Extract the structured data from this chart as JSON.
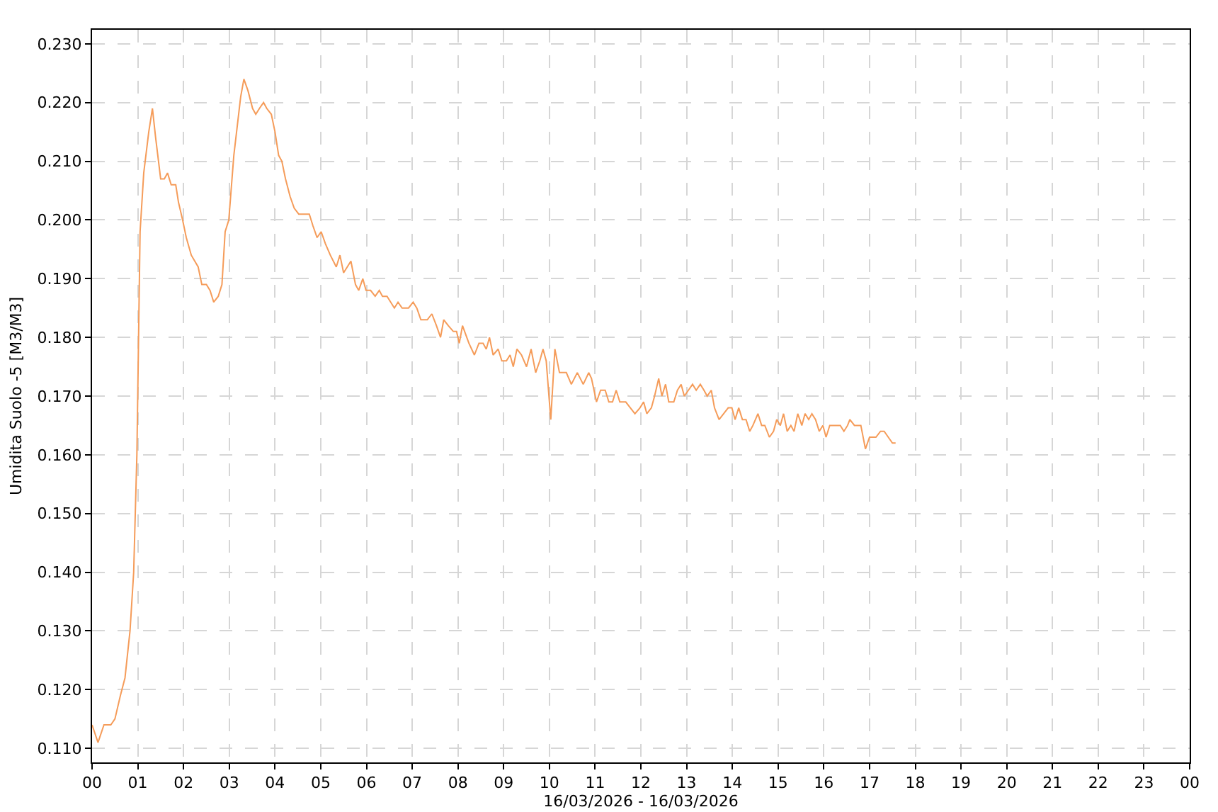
{
  "chart_data": {
    "type": "line",
    "xlabel": "16/03/2026 - 16/03/2026",
    "ylabel": "Umidita Suolo -5 [M3/M3]",
    "color": "#f59c5a",
    "grid": true,
    "xlim": [
      0,
      24
    ],
    "xticks": [
      {
        "value": 0,
        "label": "00"
      },
      {
        "value": 1,
        "label": "01"
      },
      {
        "value": 2,
        "label": "02"
      },
      {
        "value": 3,
        "label": "03"
      },
      {
        "value": 4,
        "label": "04"
      },
      {
        "value": 5,
        "label": "05"
      },
      {
        "value": 6,
        "label": "06"
      },
      {
        "value": 7,
        "label": "07"
      },
      {
        "value": 8,
        "label": "08"
      },
      {
        "value": 9,
        "label": "09"
      },
      {
        "value": 10,
        "label": "10"
      },
      {
        "value": 11,
        "label": "11"
      },
      {
        "value": 12,
        "label": "12"
      },
      {
        "value": 13,
        "label": "13"
      },
      {
        "value": 14,
        "label": "14"
      },
      {
        "value": 15,
        "label": "15"
      },
      {
        "value": 16,
        "label": "16"
      },
      {
        "value": 17,
        "label": "17"
      },
      {
        "value": 18,
        "label": "18"
      },
      {
        "value": 19,
        "label": "19"
      },
      {
        "value": 20,
        "label": "20"
      },
      {
        "value": 21,
        "label": "21"
      },
      {
        "value": 22,
        "label": "22"
      },
      {
        "value": 23,
        "label": "23"
      },
      {
        "value": 24,
        "label": "00"
      }
    ],
    "ylim": [
      0.1076,
      0.2324
    ],
    "yticks": [
      {
        "value": 0.11,
        "label": "0.110"
      },
      {
        "value": 0.12,
        "label": "0.120"
      },
      {
        "value": 0.13,
        "label": "0.130"
      },
      {
        "value": 0.14,
        "label": "0.140"
      },
      {
        "value": 0.15,
        "label": "0.150"
      },
      {
        "value": 0.16,
        "label": "0.160"
      },
      {
        "value": 0.17,
        "label": "0.170"
      },
      {
        "value": 0.18,
        "label": "0.180"
      },
      {
        "value": 0.19,
        "label": "0.190"
      },
      {
        "value": 0.2,
        "label": "0.200"
      },
      {
        "value": 0.21,
        "label": "0.210"
      },
      {
        "value": 0.22,
        "label": "0.220"
      },
      {
        "value": 0.23,
        "label": "0.230"
      }
    ],
    "x": [
      0.0,
      0.13,
      0.26,
      0.41,
      0.5,
      0.62,
      0.72,
      0.83,
      0.91,
      0.98,
      1.05,
      1.13,
      1.24,
      1.32,
      1.39,
      1.5,
      1.58,
      1.65,
      1.73,
      1.83,
      1.89,
      1.98,
      2.06,
      2.17,
      2.32,
      2.4,
      2.5,
      2.58,
      2.66,
      2.76,
      2.84,
      2.91,
      2.99,
      3.1,
      3.25,
      3.32,
      3.41,
      3.51,
      3.58,
      3.66,
      3.75,
      3.82,
      3.92,
      4.0,
      4.08,
      4.15,
      4.23,
      4.33,
      4.42,
      4.52,
      4.65,
      4.75,
      4.83,
      4.92,
      5.01,
      5.1,
      5.21,
      5.34,
      5.42,
      5.5,
      5.66,
      5.76,
      5.83,
      5.92,
      5.99,
      6.09,
      6.19,
      6.28,
      6.35,
      6.45,
      6.61,
      6.69,
      6.78,
      6.92,
      7.02,
      7.1,
      7.19,
      7.33,
      7.43,
      7.53,
      7.62,
      7.69,
      7.79,
      7.9,
      7.97,
      8.03,
      8.1,
      8.24,
      8.36,
      8.46,
      8.55,
      8.62,
      8.69,
      8.77,
      8.88,
      8.96,
      9.06,
      9.14,
      9.21,
      9.29,
      9.39,
      9.5,
      9.6,
      9.7,
      9.79,
      9.86,
      9.93,
      10.03,
      10.12,
      10.22,
      10.37,
      10.48,
      10.61,
      10.74,
      10.86,
      10.92,
      11.03,
      11.12,
      11.22,
      11.3,
      11.38,
      11.46,
      11.54,
      11.67,
      11.77,
      11.87,
      11.98,
      12.06,
      12.13,
      12.23,
      12.3,
      12.39,
      12.46,
      12.54,
      12.61,
      12.72,
      12.8,
      12.88,
      12.95,
      13.04,
      13.13,
      13.21,
      13.3,
      13.38,
      13.45,
      13.54,
      13.61,
      13.71,
      13.81,
      13.91,
      13.99,
      14.06,
      14.14,
      14.22,
      14.3,
      14.38,
      14.45,
      14.56,
      14.64,
      14.71,
      14.81,
      14.9,
      14.97,
      15.05,
      15.12,
      15.2,
      15.28,
      15.35,
      15.43,
      15.52,
      15.59,
      15.67,
      15.74,
      15.82,
      15.9,
      15.98,
      16.05,
      16.13,
      16.26,
      16.36,
      16.44,
      16.52,
      16.57,
      16.67,
      16.81,
      16.91,
      17.0,
      17.14,
      17.24,
      17.32,
      17.41,
      17.5,
      17.57
    ],
    "values": [
      0.114,
      0.111,
      0.114,
      0.114,
      0.115,
      0.119,
      0.122,
      0.13,
      0.14,
      0.16,
      0.198,
      0.208,
      0.215,
      0.219,
      0.214,
      0.207,
      0.207,
      0.208,
      0.206,
      0.206,
      0.203,
      0.2,
      0.197,
      0.194,
      0.192,
      0.189,
      0.189,
      0.188,
      0.186,
      0.187,
      0.189,
      0.198,
      0.2,
      0.211,
      0.221,
      0.224,
      0.222,
      0.219,
      0.218,
      0.219,
      0.22,
      0.219,
      0.218,
      0.215,
      0.211,
      0.21,
      0.207,
      0.204,
      0.202,
      0.201,
      0.201,
      0.201,
      0.199,
      0.197,
      0.198,
      0.196,
      0.194,
      0.192,
      0.194,
      0.191,
      0.193,
      0.189,
      0.188,
      0.19,
      0.188,
      0.188,
      0.187,
      0.188,
      0.187,
      0.187,
      0.185,
      0.186,
      0.185,
      0.185,
      0.186,
      0.185,
      0.183,
      0.183,
      0.184,
      0.182,
      0.18,
      0.183,
      0.182,
      0.181,
      0.181,
      0.179,
      0.182,
      0.179,
      0.177,
      0.179,
      0.179,
      0.178,
      0.18,
      0.177,
      0.178,
      0.176,
      0.176,
      0.177,
      0.175,
      0.178,
      0.177,
      0.175,
      0.178,
      0.174,
      0.176,
      0.178,
      0.176,
      0.166,
      0.178,
      0.174,
      0.174,
      0.172,
      0.174,
      0.172,
      0.174,
      0.173,
      0.169,
      0.171,
      0.171,
      0.169,
      0.169,
      0.171,
      0.169,
      0.169,
      0.168,
      0.167,
      0.168,
      0.169,
      0.167,
      0.168,
      0.17,
      0.173,
      0.17,
      0.172,
      0.169,
      0.169,
      0.171,
      0.172,
      0.17,
      0.171,
      0.172,
      0.171,
      0.172,
      0.171,
      0.17,
      0.171,
      0.168,
      0.166,
      0.167,
      0.168,
      0.168,
      0.166,
      0.168,
      0.166,
      0.166,
      0.164,
      0.165,
      0.167,
      0.165,
      0.165,
      0.163,
      0.164,
      0.166,
      0.165,
      0.167,
      0.164,
      0.165,
      0.164,
      0.167,
      0.165,
      0.167,
      0.166,
      0.167,
      0.166,
      0.164,
      0.165,
      0.163,
      0.165,
      0.165,
      0.165,
      0.164,
      0.165,
      0.166,
      0.165,
      0.165,
      0.161,
      0.163,
      0.163,
      0.164,
      0.164,
      0.163,
      0.162,
      0.162
    ]
  }
}
